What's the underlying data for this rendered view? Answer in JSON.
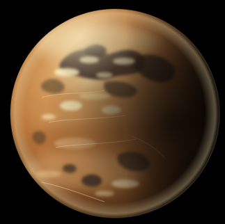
{
  "scene": {
    "subject": "planet-icon",
    "colors": {
      "space": "#000000",
      "surface_base": "#b8753a",
      "surface_light": "#e8bf86",
      "highlight": "#f6e2a6",
      "cloud": "#fff1c2",
      "dark_region": "#3d3028",
      "terminator": "#050302",
      "limb_glow": "#f0d9a8"
    }
  }
}
